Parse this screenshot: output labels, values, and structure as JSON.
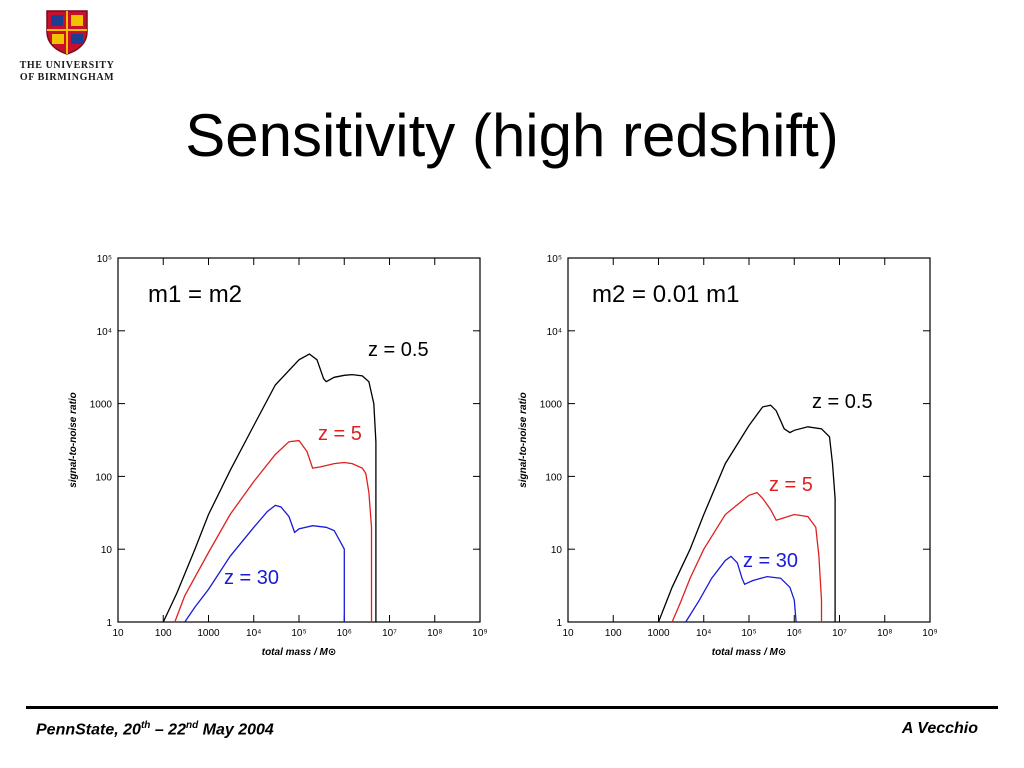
{
  "header": {
    "university_line1": "THE UNIVERSITY",
    "university_line2": "OF BIRMINGHAM",
    "title": "Sensitivity (high redshift)"
  },
  "colors": {
    "z_0_5": "#000000",
    "z_5": "#e02020",
    "z_30": "#1a1ad8"
  },
  "chart_data": [
    {
      "type": "line",
      "panel_label": "m1 = m2",
      "xlabel": "total mass / M⊙",
      "ylabel": "signal-to-noise ratio",
      "xscale": "log",
      "yscale": "log",
      "xlim": [
        10,
        1000000000
      ],
      "ylim": [
        1,
        100000
      ],
      "x_ticks": [
        "10",
        "100",
        "1000",
        "10⁴",
        "10⁵",
        "10⁶",
        "10⁷",
        "10⁸",
        "10⁹"
      ],
      "y_ticks": [
        "1",
        "10",
        "100",
        "1000",
        "10⁴",
        "10⁵"
      ],
      "grid": false,
      "series": [
        {
          "name": "z = 0.5",
          "color": "#000000",
          "points": [
            [
              100,
              1
            ],
            [
              200,
              2.5
            ],
            [
              500,
              10
            ],
            [
              1000,
              30
            ],
            [
              3000,
              120
            ],
            [
              10000,
              500
            ],
            [
              30000,
              1800
            ],
            [
              100000,
              4000
            ],
            [
              170000,
              4800
            ],
            [
              250000,
              4000
            ],
            [
              350000,
              2200
            ],
            [
              400000,
              2000
            ],
            [
              600000,
              2300
            ],
            [
              1000000,
              2450
            ],
            [
              1500000,
              2500
            ],
            [
              2500000,
              2400
            ],
            [
              3500000,
              2000
            ],
            [
              4500000,
              1000
            ],
            [
              5000000,
              300
            ],
            [
              5000000,
              1
            ]
          ],
          "label": "z = 0.5"
        },
        {
          "name": "z = 5",
          "color": "#e02020",
          "points": [
            [
              180,
              1
            ],
            [
              300,
              2.3
            ],
            [
              1000,
              9
            ],
            [
              3000,
              30
            ],
            [
              10000,
              85
            ],
            [
              30000,
              200
            ],
            [
              60000,
              300
            ],
            [
              100000,
              310
            ],
            [
              150000,
              220
            ],
            [
              200000,
              130
            ],
            [
              300000,
              135
            ],
            [
              600000,
              150
            ],
            [
              1000000,
              155
            ],
            [
              1500000,
              150
            ],
            [
              2500000,
              130
            ],
            [
              3000000,
              110
            ],
            [
              3500000,
              60
            ],
            [
              4000000,
              20
            ],
            [
              4000000,
              1
            ]
          ],
          "label": "z = 5"
        },
        {
          "name": "z = 30",
          "color": "#1a1ad8",
          "points": [
            [
              300,
              1
            ],
            [
              500,
              1.6
            ],
            [
              1000,
              2.8
            ],
            [
              3000,
              8
            ],
            [
              10000,
              20
            ],
            [
              20000,
              33
            ],
            [
              30000,
              40
            ],
            [
              40000,
              38
            ],
            [
              60000,
              28
            ],
            [
              80000,
              17
            ],
            [
              100000,
              19
            ],
            [
              200000,
              21
            ],
            [
              400000,
              20
            ],
            [
              600000,
              18
            ],
            [
              800000,
              13
            ],
            [
              1000000,
              10
            ],
            [
              1000000,
              1
            ]
          ],
          "label": "z = 30"
        }
      ]
    },
    {
      "type": "line",
      "panel_label": "m2 = 0.01 m1",
      "xlabel": "total mass / M⊙",
      "ylabel": "signal-to-noise ratio",
      "xscale": "log",
      "yscale": "log",
      "xlim": [
        10,
        1000000000
      ],
      "ylim": [
        1,
        100000
      ],
      "x_ticks": [
        "10",
        "100",
        "1000",
        "10⁴",
        "10⁵",
        "10⁶",
        "10⁷",
        "10⁸",
        "10⁹"
      ],
      "y_ticks": [
        "1",
        "10",
        "100",
        "1000",
        "10⁴",
        "10⁵"
      ],
      "grid": false,
      "series": [
        {
          "name": "z = 0.5",
          "color": "#000000",
          "points": [
            [
              1000,
              1
            ],
            [
              2000,
              3
            ],
            [
              5000,
              10
            ],
            [
              10000,
              30
            ],
            [
              30000,
              150
            ],
            [
              100000,
              500
            ],
            [
              200000,
              900
            ],
            [
              300000,
              950
            ],
            [
              400000,
              800
            ],
            [
              600000,
              450
            ],
            [
              800000,
              400
            ],
            [
              1000000,
              430
            ],
            [
              2000000,
              480
            ],
            [
              4000000,
              450
            ],
            [
              6000000,
              350
            ],
            [
              7000000,
              150
            ],
            [
              8000000,
              50
            ],
            [
              8000000,
              1
            ]
          ],
          "label": "z = 0.5"
        },
        {
          "name": "z = 5",
          "color": "#e02020",
          "points": [
            [
              2000,
              1
            ],
            [
              3000,
              1.8
            ],
            [
              5000,
              4
            ],
            [
              10000,
              10
            ],
            [
              30000,
              30
            ],
            [
              100000,
              55
            ],
            [
              150000,
              60
            ],
            [
              200000,
              50
            ],
            [
              300000,
              35
            ],
            [
              400000,
              25
            ],
            [
              600000,
              27
            ],
            [
              1000000,
              30
            ],
            [
              2000000,
              28
            ],
            [
              3000000,
              20
            ],
            [
              3500000,
              8
            ],
            [
              4000000,
              2
            ],
            [
              4000000,
              1
            ]
          ],
          "label": "z = 5"
        },
        {
          "name": "z = 30",
          "color": "#1a1ad8",
          "points": [
            [
              4000,
              1
            ],
            [
              8000,
              2
            ],
            [
              15000,
              4
            ],
            [
              30000,
              7
            ],
            [
              40000,
              8
            ],
            [
              55000,
              6.5
            ],
            [
              70000,
              4
            ],
            [
              80000,
              3.3
            ],
            [
              120000,
              3.7
            ],
            [
              250000,
              4.2
            ],
            [
              500000,
              4
            ],
            [
              800000,
              3
            ],
            [
              1000000,
              2
            ],
            [
              1100000,
              1
            ]
          ],
          "label": "z = 30"
        }
      ]
    }
  ],
  "footer": {
    "left_prefix": "PennState, 20",
    "left_sup1": "th",
    "left_middle": " – 22",
    "left_sup2": "nd",
    "left_suffix": " May 2004",
    "right": "A Vecchio"
  }
}
